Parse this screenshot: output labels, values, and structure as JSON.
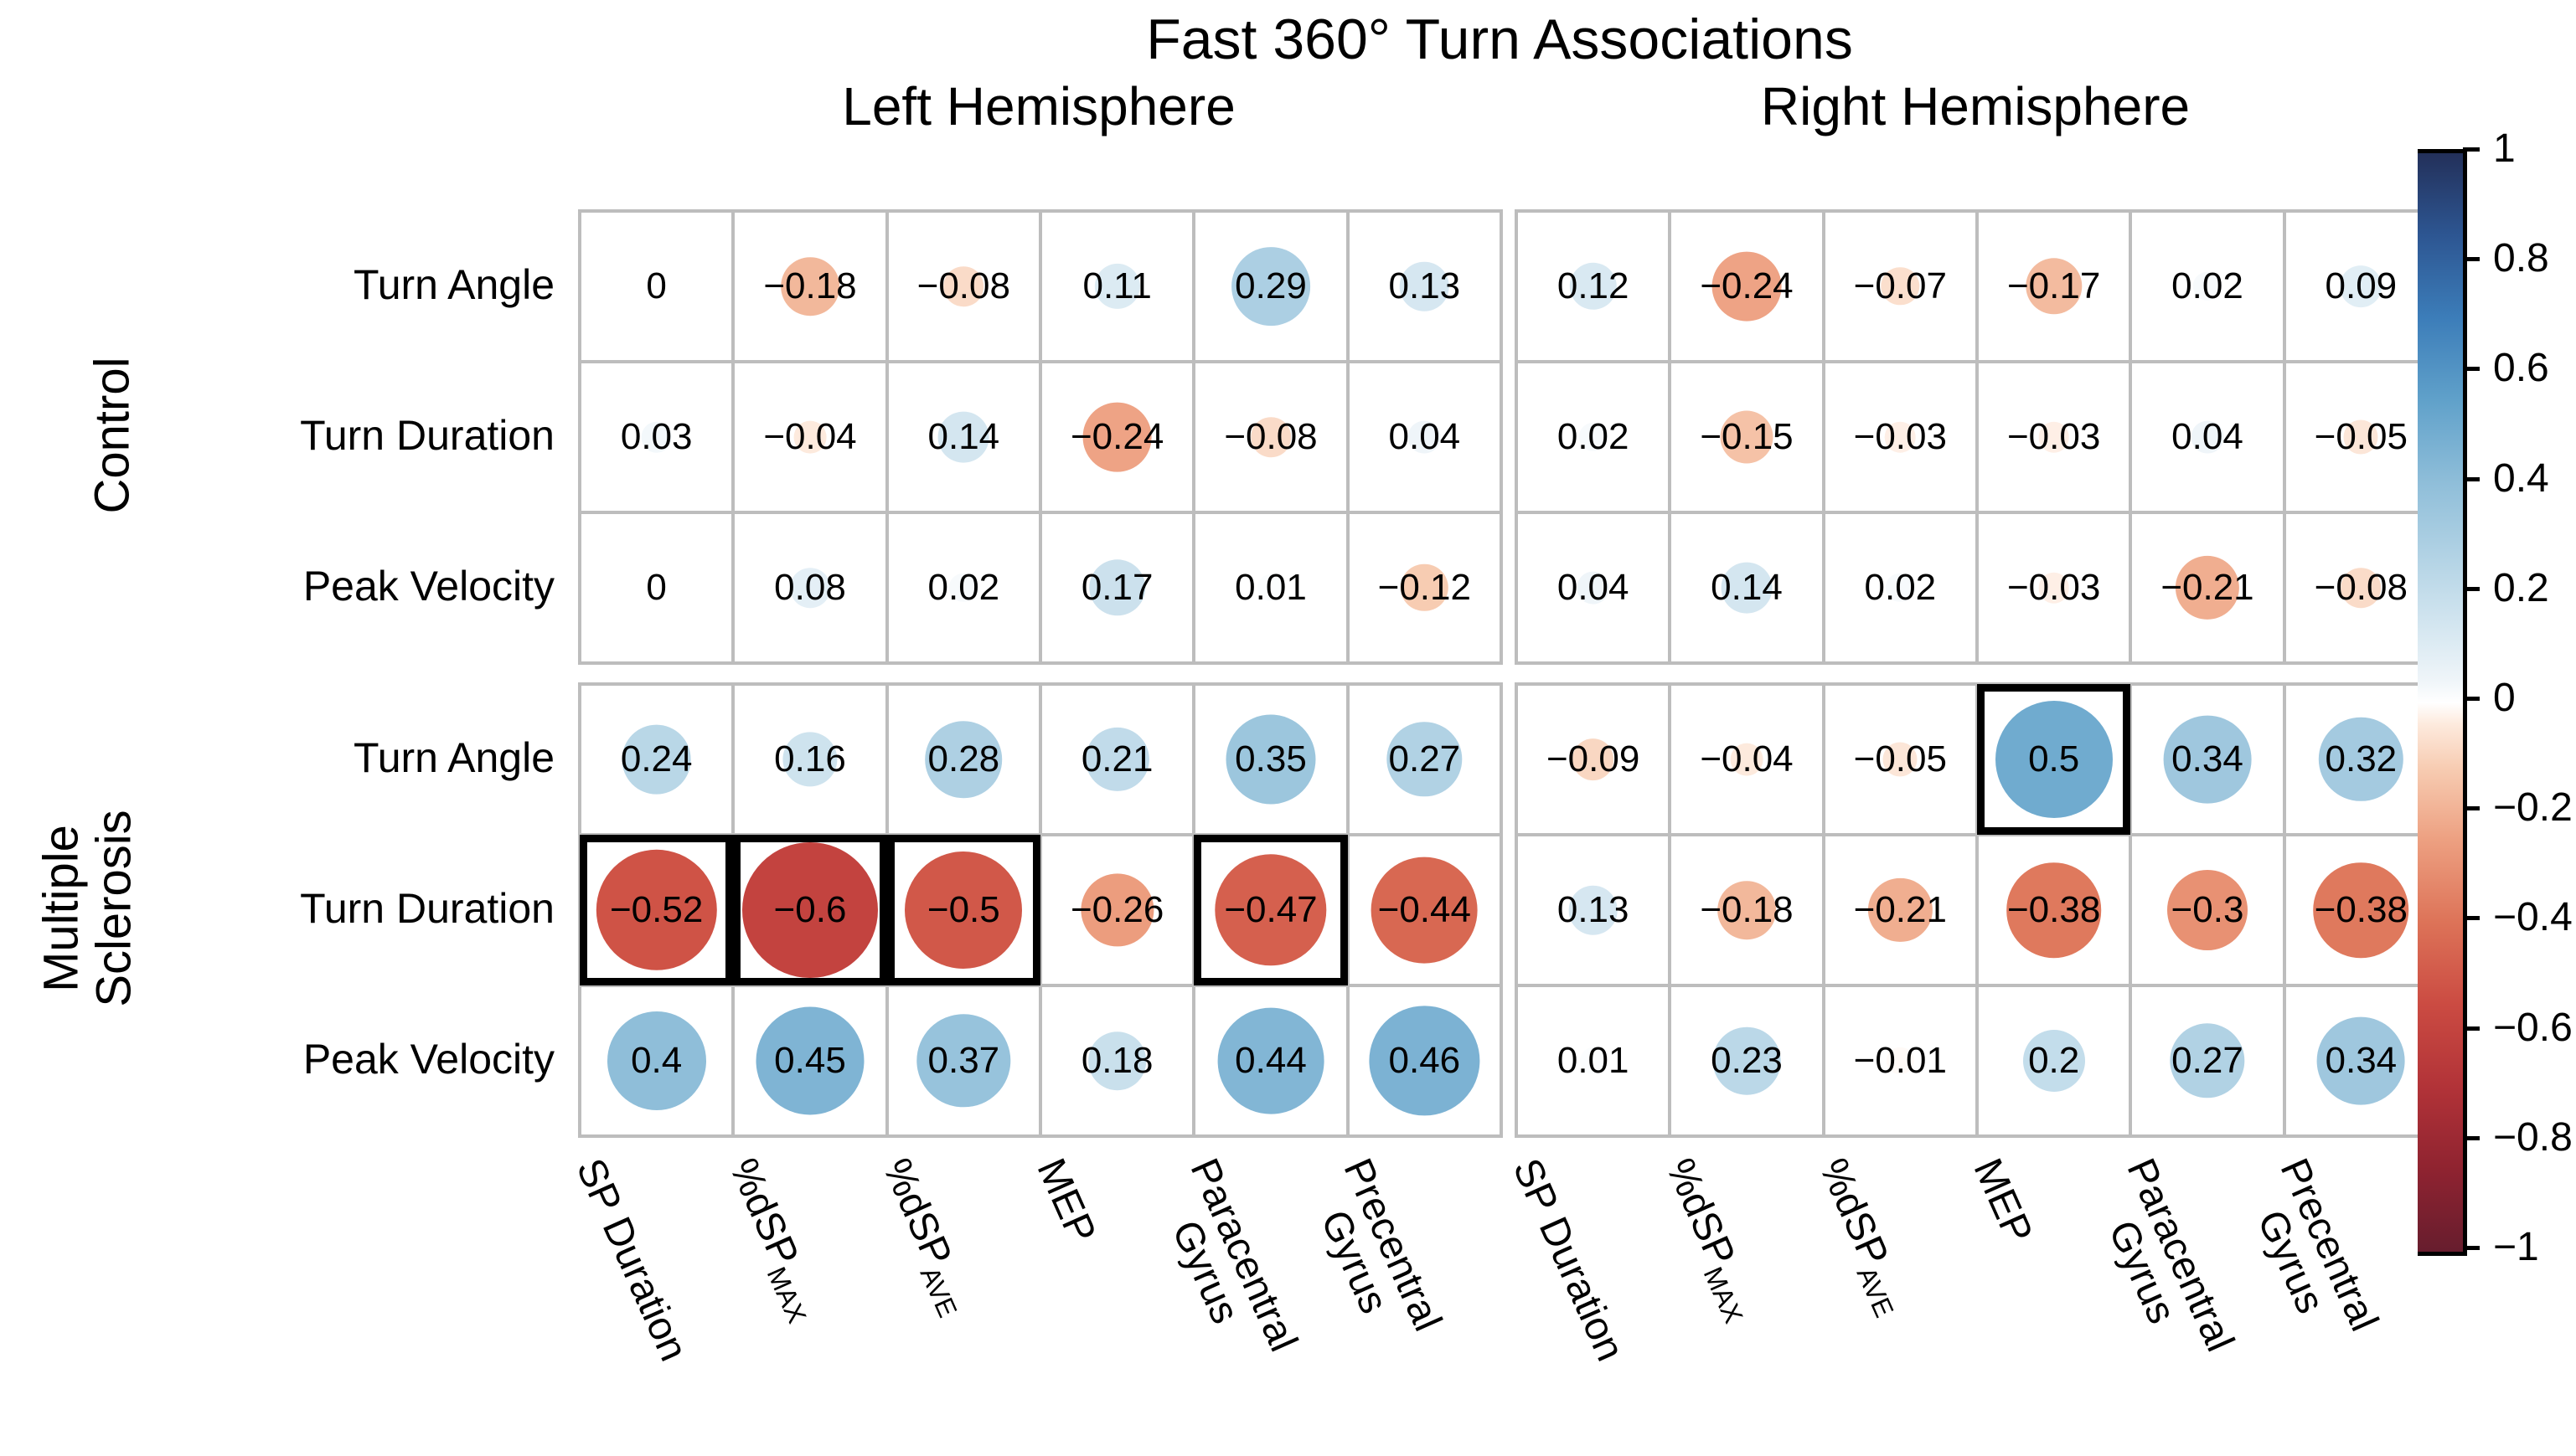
{
  "title": "Fast 360° Turn Associations",
  "hemispheres": [
    "Left Hemisphere",
    "Right Hemisphere"
  ],
  "row_groups": [
    {
      "label": "Control",
      "lines": [
        "Control"
      ]
    },
    {
      "label": "Multiple Sclerosis",
      "lines": [
        "Multiple",
        "Sclerosis"
      ]
    }
  ],
  "row_labels": [
    "Turn Angle",
    "Turn Duration",
    "Peak Velocity"
  ],
  "column_labels": [
    {
      "text": "SP Duration"
    },
    {
      "text": "%dSP",
      "subscript": "MAX"
    },
    {
      "text": "%dSP",
      "subscript": "AVE"
    },
    {
      "text": "MEP"
    },
    {
      "text": "Paracentral",
      "line2": "Gyrus"
    },
    {
      "text": "Precentral",
      "line2": "Gyrus"
    }
  ],
  "colorbar": {
    "tick_labels": [
      "1",
      "0.8",
      "0.6",
      "0.4",
      "0.2",
      "0",
      "−0.2",
      "−0.4",
      "−0.6",
      "−0.8",
      "−1"
    ],
    "max_color": "#23305a",
    "mid_color": "#ffffff",
    "min_color": "#671d2e"
  },
  "chart_data": {
    "type": "heatmap",
    "subtype": "correlation-bubble-matrix",
    "title": "Fast 360° Turn Associations",
    "panels": [
      "Left Hemisphere",
      "Right Hemisphere"
    ],
    "row_groups": [
      "Control",
      "Multiple Sclerosis"
    ],
    "rows": [
      "Turn Angle",
      "Turn Duration",
      "Peak Velocity"
    ],
    "columns": [
      "SP Duration",
      "%dSP MAX",
      "%dSP AVE",
      "MEP",
      "Paracentral Gyrus",
      "Precentral Gyrus"
    ],
    "value_range": [
      -1,
      1
    ],
    "legend_position": "right-colorbar",
    "values": [
      [
        [
          [
            0,
            -0.18,
            -0.08,
            0.11,
            0.29,
            0.13
          ],
          [
            0.03,
            -0.04,
            0.14,
            -0.24,
            -0.08,
            0.04
          ],
          [
            0,
            0.08,
            0.02,
            0.17,
            0.01,
            -0.12
          ]
        ],
        [
          [
            0.12,
            -0.24,
            -0.07,
            -0.17,
            0.02,
            0.09
          ],
          [
            0.02,
            -0.15,
            -0.03,
            -0.03,
            0.04,
            -0.05
          ],
          [
            0.04,
            0.14,
            0.02,
            -0.03,
            -0.21,
            -0.08
          ]
        ]
      ],
      [
        [
          [
            0.24,
            0.16,
            0.28,
            0.21,
            0.35,
            0.27
          ],
          [
            -0.52,
            -0.6,
            -0.5,
            -0.26,
            -0.47,
            -0.44
          ],
          [
            0.4,
            0.45,
            0.37,
            0.18,
            0.44,
            0.46
          ]
        ],
        [
          [
            -0.09,
            -0.04,
            -0.05,
            0.5,
            0.34,
            0.32
          ],
          [
            0.13,
            -0.18,
            -0.21,
            -0.38,
            -0.3,
            -0.38
          ],
          [
            0.01,
            0.23,
            -0.01,
            0.2,
            0.27,
            0.34
          ]
        ]
      ]
    ],
    "significant_cells": [
      {
        "group": "Multiple Sclerosis",
        "panel": "Left Hemisphere",
        "row": "Turn Duration",
        "column": "SP Duration",
        "g": 1,
        "p": 0,
        "r": 1,
        "c": 0,
        "value": -0.52
      },
      {
        "group": "Multiple Sclerosis",
        "panel": "Left Hemisphere",
        "row": "Turn Duration",
        "column": "%dSP MAX",
        "g": 1,
        "p": 0,
        "r": 1,
        "c": 1,
        "value": -0.6
      },
      {
        "group": "Multiple Sclerosis",
        "panel": "Left Hemisphere",
        "row": "Turn Duration",
        "column": "%dSP AVE",
        "g": 1,
        "p": 0,
        "r": 1,
        "c": 2,
        "value": -0.5
      },
      {
        "group": "Multiple Sclerosis",
        "panel": "Left Hemisphere",
        "row": "Turn Duration",
        "column": "Paracentral Gyrus",
        "g": 1,
        "p": 0,
        "r": 1,
        "c": 4,
        "value": -0.47
      },
      {
        "group": "Multiple Sclerosis",
        "panel": "Right Hemisphere",
        "row": "Turn Angle",
        "column": "MEP",
        "g": 1,
        "p": 1,
        "r": 0,
        "c": 3,
        "value": 0.5
      }
    ],
    "colormap_stops": [
      [
        -1,
        "#671d2e"
      ],
      [
        -0.85,
        "#8f2330"
      ],
      [
        -0.7,
        "#b23338"
      ],
      [
        -0.55,
        "#cb4b42"
      ],
      [
        -0.4,
        "#dd7358"
      ],
      [
        -0.25,
        "#eda081"
      ],
      [
        -0.12,
        "#f7ccb2"
      ],
      [
        -0.04,
        "#fdeadd"
      ],
      [
        0,
        "#ffffff"
      ],
      [
        0.04,
        "#eff5f9"
      ],
      [
        0.12,
        "#d9e9f2"
      ],
      [
        0.25,
        "#b6d5e6"
      ],
      [
        0.4,
        "#8fbed9"
      ],
      [
        0.55,
        "#60a1ca"
      ],
      [
        0.7,
        "#3c7db9"
      ],
      [
        0.85,
        "#2d5692"
      ],
      [
        1,
        "#23305a"
      ]
    ]
  }
}
